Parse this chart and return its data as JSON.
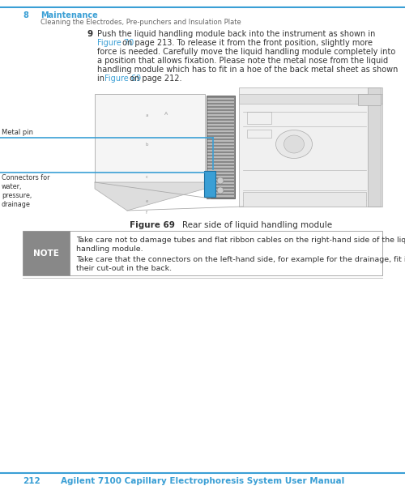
{
  "page_bg": "#ffffff",
  "blue_color": "#3a9fd5",
  "text_color": "#333333",
  "link_color": "#3a9fd5",
  "gray_text": "#666666",
  "header_num": "8",
  "header_title": "Maintenance",
  "header_sub": "Cleaning the Electrodes, Pre-punchers and Insulation Plate",
  "step_num": "9",
  "step_lines": [
    "Push the liquid handling module back into the instrument as shown in",
    "Figure 70 on page 213. To release it from the front position, slightly more",
    "force is needed. Carefully move the liquid handling module completely into",
    "a position that allows fixation. Please note the metal nose from the liquid",
    "handling module which has to fit in a hoe of the back metal sheet as shown",
    "in Figure 69 on page 212."
  ],
  "step_link1_text": "Figure 70",
  "step_link1_line": 1,
  "step_link1_col": 0,
  "step_link2_text": "Figure 69",
  "step_link2_line": 5,
  "step_link2_col": 3,
  "fig_caption_bold": "Figure 69",
  "fig_caption_normal": "    Rear side of liquid handling module",
  "note_label": "NOTE",
  "note_line1": "Take care not to damage tubes and flat ribbon cables on the right-hand side of the liquid",
  "note_line2": "handling module.",
  "note_line3": "Take care that the connectors on the left-hand side, for example for the drainage, fit into",
  "note_line4": "their cut-out in the back.",
  "label_metal_pin": "Metal pin",
  "label_connectors": "Connectors for\nwater,\npressure,\ndrainage",
  "footer_page": "212",
  "footer_title": "Agilent 7100 Capillary Electrophoresis System User Manual"
}
